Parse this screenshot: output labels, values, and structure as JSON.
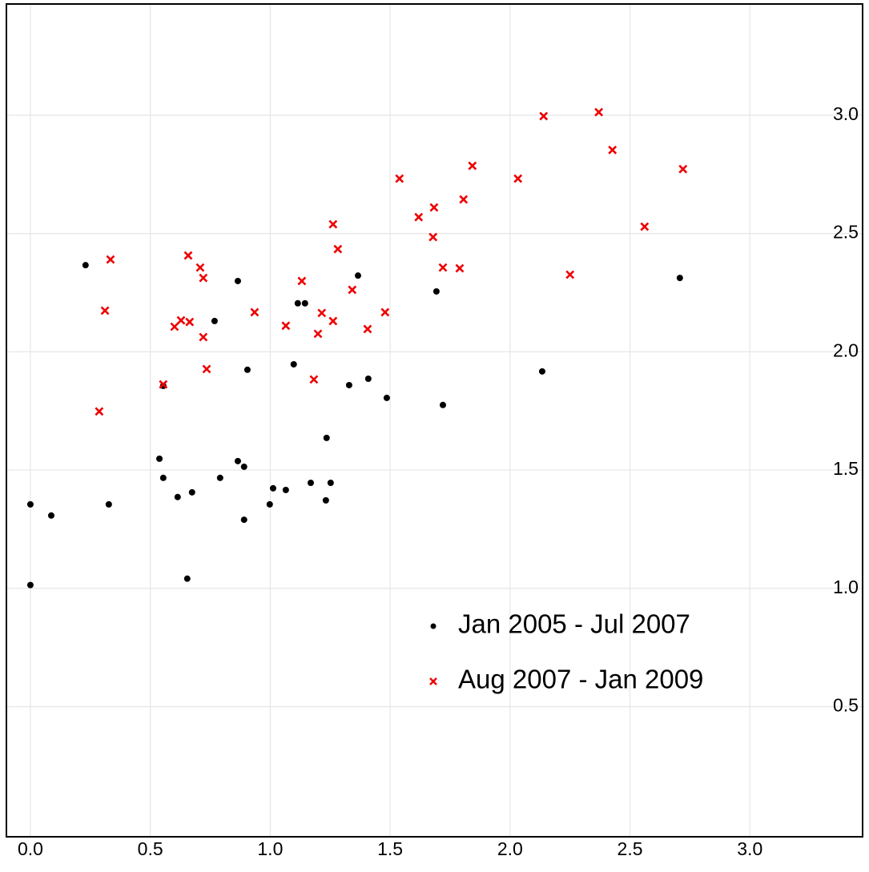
{
  "chart_data": {
    "type": "scatter",
    "xlim": [
      -0.1,
      3.47
    ],
    "ylim": [
      -0.05,
      3.47
    ],
    "xticks": [
      {
        "value": 0,
        "label": "0.0"
      },
      0.5,
      {
        "value": 1,
        "label": "1.0"
      },
      1.5,
      {
        "value": 2,
        "label": "2.0"
      },
      2.5,
      {
        "value": 3,
        "label": "3.0"
      }
    ],
    "yticks": [
      0.5,
      {
        "value": 1,
        "label": "1.0"
      },
      1.5,
      {
        "value": 2,
        "label": "2.0"
      },
      2.5,
      {
        "value": 3,
        "label": "3.0"
      }
    ],
    "grid": true,
    "legend": "lower right",
    "series": [
      {
        "name": "Jan 2005 - Jul 2007",
        "color": "#000000",
        "marker": "circle",
        "x": [
          0.0,
          0.0,
          0.087,
          0.23,
          0.327,
          0.538,
          0.554,
          0.554,
          0.614,
          0.654,
          0.674,
          0.768,
          0.791,
          0.865,
          0.865,
          0.891,
          0.891,
          0.905,
          0.998,
          1.012,
          1.065,
          1.098,
          1.115,
          1.145,
          1.169,
          1.232,
          1.235,
          1.252,
          1.329,
          1.366,
          1.409,
          1.486,
          1.693,
          1.72,
          2.134,
          2.708
        ],
        "values": [
          1.355,
          1.014,
          1.308,
          2.366,
          1.355,
          1.548,
          1.467,
          1.856,
          1.386,
          1.041,
          1.406,
          2.13,
          1.467,
          1.538,
          2.299,
          1.514,
          1.29,
          1.924,
          1.355,
          1.423,
          1.416,
          1.947,
          2.205,
          2.205,
          1.446,
          1.372,
          1.636,
          1.446,
          1.859,
          2.322,
          1.886,
          1.805,
          2.255,
          1.775,
          1.917,
          2.312
        ]
      },
      {
        "name": "Aug 2007 - Jan 2009",
        "color": "#ee0000",
        "marker": "x",
        "x": [
          0.287,
          0.311,
          0.334,
          0.554,
          0.601,
          0.628,
          0.658,
          0.664,
          0.708,
          0.721,
          0.721,
          0.735,
          0.935,
          1.065,
          1.132,
          1.182,
          1.199,
          1.215,
          1.262,
          1.262,
          1.282,
          1.342,
          1.406,
          1.479,
          1.539,
          1.619,
          1.683,
          1.679,
          1.72,
          1.79,
          1.806,
          1.843,
          2.033,
          2.14,
          2.25,
          2.37,
          2.427,
          2.561,
          2.721
        ],
        "values": [
          1.748,
          2.174,
          2.39,
          1.862,
          2.106,
          2.133,
          2.407,
          2.126,
          2.356,
          2.312,
          2.062,
          1.927,
          2.167,
          2.11,
          2.299,
          1.883,
          2.076,
          2.164,
          2.539,
          2.13,
          2.434,
          2.262,
          2.096,
          2.167,
          2.732,
          2.569,
          2.61,
          2.485,
          2.356,
          2.353,
          2.644,
          2.786,
          2.732,
          2.996,
          2.326,
          3.013,
          2.853,
          2.529,
          2.772
        ]
      }
    ]
  }
}
